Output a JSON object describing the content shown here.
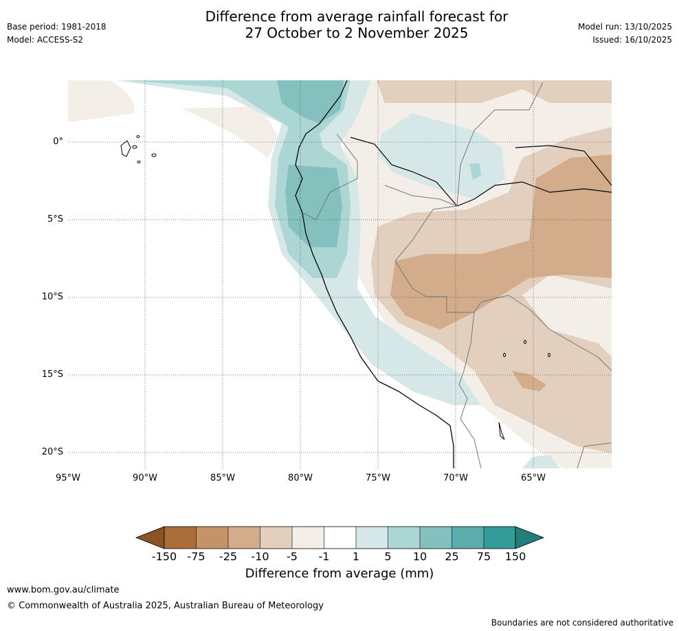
{
  "header": {
    "title_line1": "Difference from average rainfall forecast for",
    "title_line2": "27 October to 2 November 2025",
    "base_period": "Base period: 1981-2018",
    "model": "Model: ACCESS-S2",
    "model_run": "Model run: 13/10/2025",
    "issued": "Issued: 16/10/2025"
  },
  "map": {
    "lat_labels": [
      "0°",
      "5°S",
      "10°S",
      "15°S",
      "20°S"
    ],
    "lon_labels": [
      "95°W",
      "90°W",
      "85°W",
      "80°W",
      "75°W",
      "70°W",
      "65°W"
    ]
  },
  "legend": {
    "title": "Difference from average (mm)",
    "ticks": [
      "-150",
      "-75",
      "-25",
      "-10",
      "-5",
      "-1",
      "1",
      "5",
      "10",
      "25",
      "75",
      "150"
    ],
    "colors": [
      "#8a5426",
      "#ab6e3a",
      "#c49469",
      "#d2ac8b",
      "#e3cfbe",
      "#f3eee8",
      "#ffffff",
      "#d5e8e7",
      "#abd6d3",
      "#83c0be",
      "#5bacab",
      "#339b98",
      "#257e7c"
    ]
  },
  "footer": {
    "website": "www.bom.gov.au/climate",
    "copyright": "© Commonwealth of Australia 2025, Australian Bureau of Meteorology",
    "disclaimer": "Boundaries are not considered authoritative"
  }
}
